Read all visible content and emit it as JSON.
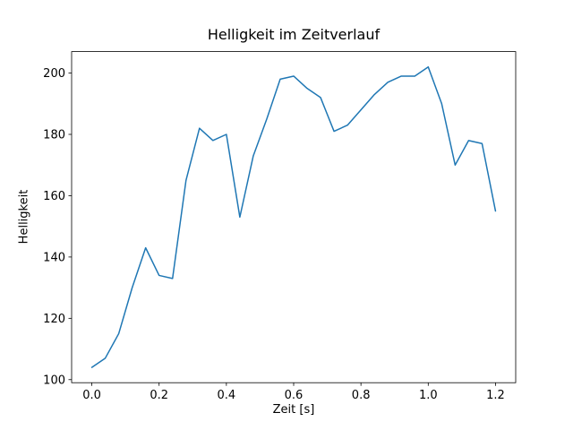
{
  "chart_data": {
    "type": "line",
    "title": "Helligkeit im Zeitverlauf",
    "xlabel": "Zeit [s]",
    "ylabel": "Helligkeit",
    "x": [
      0.0,
      0.04,
      0.08,
      0.12,
      0.16,
      0.2,
      0.24,
      0.28,
      0.32,
      0.36,
      0.4,
      0.44,
      0.48,
      0.52,
      0.56,
      0.6,
      0.64,
      0.68,
      0.72,
      0.76,
      0.8,
      0.84,
      0.88,
      0.92,
      0.96,
      1.0,
      1.04,
      1.08,
      1.12,
      1.16,
      1.2
    ],
    "y": [
      104,
      107,
      115,
      130,
      143,
      134,
      133,
      165,
      182,
      178,
      180,
      153,
      173,
      185,
      198,
      199,
      195,
      192,
      181,
      183,
      188,
      193,
      197,
      199,
      199,
      202,
      190,
      170,
      178,
      177,
      155
    ],
    "xlim": [
      -0.06,
      1.26
    ],
    "ylim": [
      99,
      207
    ],
    "xticks": [
      0.0,
      0.2,
      0.4,
      0.6,
      0.8,
      1.0,
      1.2
    ],
    "xtick_labels": [
      "0.0",
      "0.2",
      "0.4",
      "0.6",
      "0.8",
      "1.0",
      "1.2"
    ],
    "yticks": [
      100,
      120,
      140,
      160,
      180,
      200
    ],
    "ytick_labels": [
      "100",
      "120",
      "140",
      "160",
      "180",
      "200"
    ],
    "line_color": "#1f77b4",
    "axis_color": "#000000",
    "grid": false,
    "legend": "none"
  }
}
